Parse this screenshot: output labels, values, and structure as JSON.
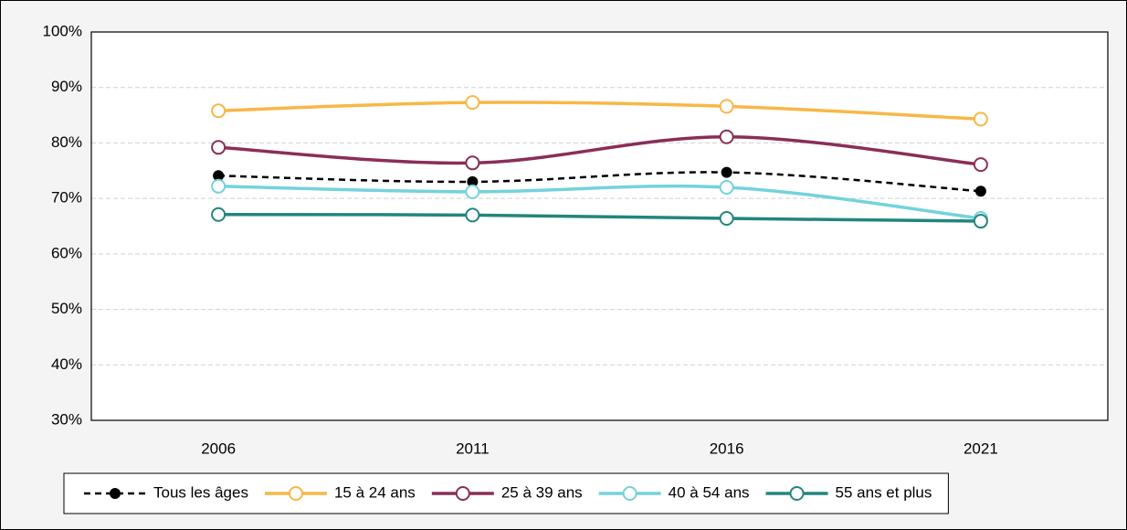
{
  "chart_data": {
    "type": "line",
    "categories": [
      "2006",
      "2011",
      "2016",
      "2021"
    ],
    "ylim": [
      30,
      100
    ],
    "yticks": [
      {
        "value": 30,
        "label": "30%"
      },
      {
        "value": 40,
        "label": "40%"
      },
      {
        "value": 50,
        "label": "50%"
      },
      {
        "value": 60,
        "label": "60%"
      },
      {
        "value": 70,
        "label": "70%"
      },
      {
        "value": 80,
        "label": "80%"
      },
      {
        "value": 90,
        "label": "90%"
      },
      {
        "value": 100,
        "label": "100%"
      }
    ],
    "grid": true,
    "legend": "bottom",
    "series": [
      {
        "name": "Tous les âges",
        "color": "#000000",
        "dashed": true,
        "marker_filled": true,
        "values": [
          74.1,
          73.0,
          74.7,
          71.3
        ]
      },
      {
        "name": "15 à 24 ans",
        "color": "#f8b746",
        "values": [
          85.8,
          87.3,
          86.6,
          84.3
        ]
      },
      {
        "name": "25 à 39 ans",
        "color": "#8a2e58",
        "values": [
          79.2,
          76.4,
          81.1,
          76.1
        ]
      },
      {
        "name": "40 à 54 ans",
        "color": "#74d2dc",
        "values": [
          72.2,
          71.2,
          72.0,
          66.4
        ]
      },
      {
        "name": "55 ans et plus",
        "color": "#23857e",
        "values": [
          67.1,
          67.0,
          66.4,
          65.9
        ]
      }
    ]
  }
}
